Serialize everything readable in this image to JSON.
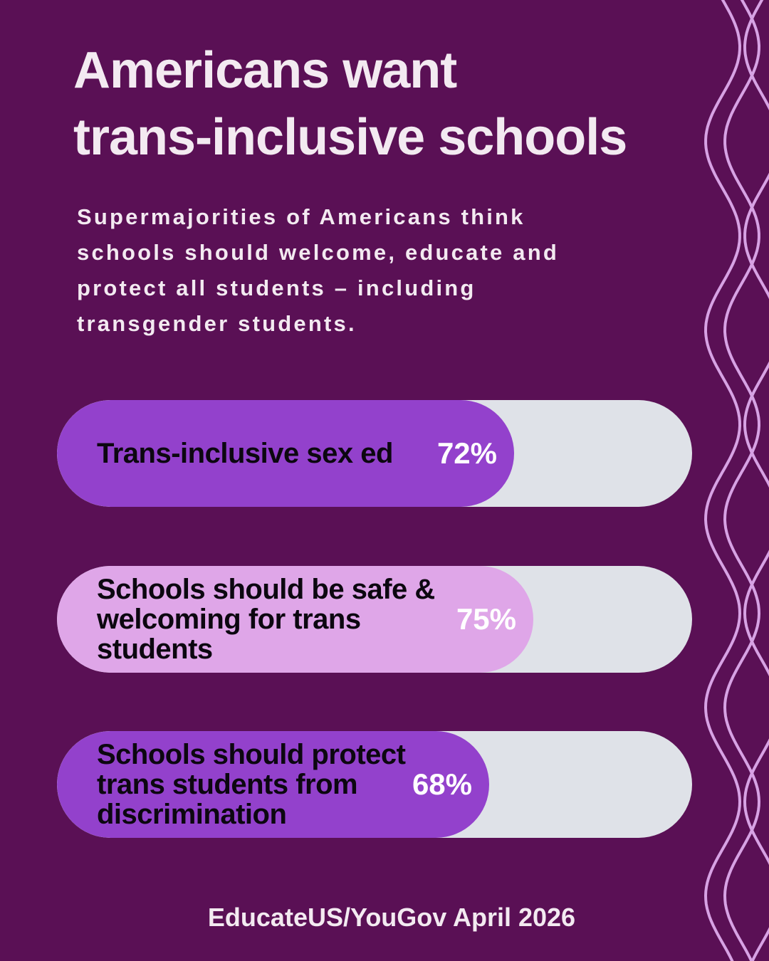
{
  "title_lines": [
    "Americans want",
    "trans-inclusive schools"
  ],
  "subtitle_lines": [
    "Supermajorities of Americans think",
    "schools should welcome, educate and",
    "protect all students – including",
    "transgender students."
  ],
  "source": "EducateUS/YouGov April 2026",
  "colors": {
    "background": "#5a1055",
    "track": "#dfe2e8",
    "fill_dark": "#9341cc",
    "fill_light": "#dfa6e8",
    "wave": "#d7a2e4",
    "text_light": "#f3eaf1",
    "text_dark": "#0c0710"
  },
  "chart_data": {
    "type": "bar",
    "orientation": "horizontal",
    "ylim": [
      0,
      100
    ],
    "categories": [
      "Trans-inclusive sex ed",
      "Schools should be safe & welcoming for trans students",
      "Schools should protect trans students from discrimination"
    ],
    "category_lines": [
      [
        "Trans-inclusive sex ed"
      ],
      [
        "Schools should be safe &",
        "welcoming for trans",
        "students"
      ],
      [
        "Schools should protect",
        "trans students from",
        "discrimination"
      ]
    ],
    "values": [
      72,
      75,
      68
    ],
    "value_labels": [
      "72%",
      "75%",
      "68%"
    ],
    "bar_colors": [
      "#9341cc",
      "#dfa6e8",
      "#9341cc"
    ]
  }
}
